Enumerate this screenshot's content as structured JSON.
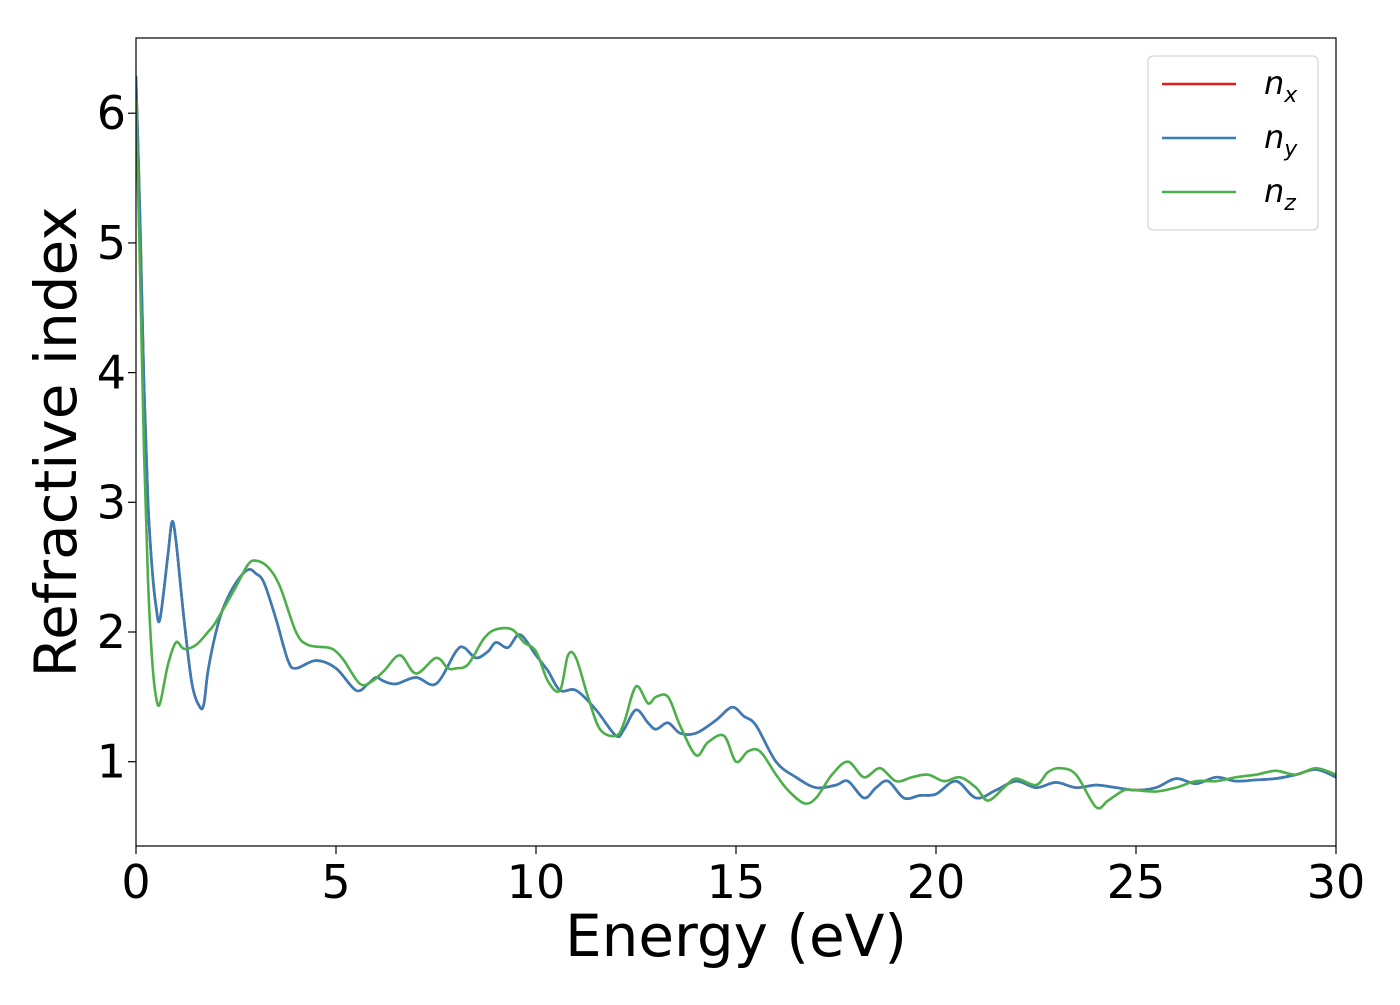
{
  "chart_data": {
    "type": "line",
    "xlabel": "Energy (eV)",
    "ylabel": "Refractive index",
    "xlim": [
      0,
      30
    ],
    "ylim": [
      0.35,
      6.58
    ],
    "xticks": [
      0,
      5,
      10,
      15,
      20,
      25,
      30
    ],
    "yticks": [
      1,
      2,
      3,
      4,
      5,
      6
    ],
    "grid": false,
    "legend_position": "top-right",
    "series": [
      {
        "name": "n",
        "subscript": "x",
        "color": "#e41a1c",
        "x": [
          0,
          0.1,
          0.2,
          0.3,
          0.4,
          0.5,
          0.6,
          0.8,
          0.9,
          1.0,
          1.2,
          1.4,
          1.6,
          1.7,
          1.8,
          2.0,
          2.2,
          2.5,
          2.8,
          3.0,
          3.2,
          3.5,
          3.8,
          4.0,
          4.5,
          5.0,
          5.5,
          5.8,
          6.0,
          6.2,
          6.5,
          7.0,
          7.5,
          8.0,
          8.2,
          8.5,
          8.8,
          9.0,
          9.3,
          9.6,
          10.0,
          10.3,
          10.6,
          11.0,
          11.5,
          12.0,
          12.2,
          12.5,
          12.8,
          13.0,
          13.3,
          13.6,
          14.0,
          14.5,
          14.9,
          15.2,
          15.5,
          16.0,
          16.5,
          17.0,
          17.5,
          17.8,
          18.2,
          18.5,
          18.8,
          19.2,
          19.6,
          20.0,
          20.5,
          21.0,
          21.5,
          22.0,
          22.5,
          23.0,
          23.5,
          24.0,
          24.5,
          25.0,
          25.5,
          26.0,
          26.5,
          27.0,
          27.5,
          28.0,
          28.5,
          29.0,
          29.5,
          30.0
        ],
        "y": [
          6.28,
          5.2,
          3.9,
          3.0,
          2.5,
          2.2,
          2.1,
          2.6,
          2.85,
          2.7,
          2.1,
          1.6,
          1.42,
          1.45,
          1.7,
          2.0,
          2.2,
          2.38,
          2.48,
          2.45,
          2.38,
          2.1,
          1.78,
          1.72,
          1.78,
          1.72,
          1.55,
          1.6,
          1.65,
          1.62,
          1.6,
          1.65,
          1.6,
          1.85,
          1.88,
          1.8,
          1.85,
          1.92,
          1.88,
          1.98,
          1.82,
          1.7,
          1.55,
          1.55,
          1.4,
          1.2,
          1.25,
          1.4,
          1.3,
          1.25,
          1.3,
          1.22,
          1.22,
          1.32,
          1.42,
          1.35,
          1.28,
          1.0,
          0.88,
          0.8,
          0.82,
          0.85,
          0.72,
          0.8,
          0.85,
          0.72,
          0.74,
          0.75,
          0.85,
          0.72,
          0.78,
          0.85,
          0.8,
          0.84,
          0.8,
          0.82,
          0.8,
          0.78,
          0.8,
          0.87,
          0.83,
          0.88,
          0.85,
          0.86,
          0.87,
          0.9,
          0.94,
          0.88
        ]
      },
      {
        "name": "n",
        "subscript": "y",
        "color": "#377eb8",
        "x": [
          0,
          0.1,
          0.2,
          0.3,
          0.4,
          0.5,
          0.6,
          0.8,
          0.9,
          1.0,
          1.2,
          1.4,
          1.6,
          1.7,
          1.8,
          2.0,
          2.2,
          2.5,
          2.8,
          3.0,
          3.2,
          3.5,
          3.8,
          4.0,
          4.5,
          5.0,
          5.5,
          5.8,
          6.0,
          6.2,
          6.5,
          7.0,
          7.5,
          8.0,
          8.2,
          8.5,
          8.8,
          9.0,
          9.3,
          9.6,
          10.0,
          10.3,
          10.6,
          11.0,
          11.5,
          12.0,
          12.2,
          12.5,
          12.8,
          13.0,
          13.3,
          13.6,
          14.0,
          14.5,
          14.9,
          15.2,
          15.5,
          16.0,
          16.5,
          17.0,
          17.5,
          17.8,
          18.2,
          18.5,
          18.8,
          19.2,
          19.6,
          20.0,
          20.5,
          21.0,
          21.5,
          22.0,
          22.5,
          23.0,
          23.5,
          24.0,
          24.5,
          25.0,
          25.5,
          26.0,
          26.5,
          27.0,
          27.5,
          28.0,
          28.5,
          29.0,
          29.5,
          30.0
        ],
        "y": [
          6.28,
          5.2,
          3.9,
          3.0,
          2.5,
          2.2,
          2.1,
          2.6,
          2.85,
          2.7,
          2.1,
          1.6,
          1.42,
          1.45,
          1.7,
          2.0,
          2.2,
          2.38,
          2.48,
          2.45,
          2.38,
          2.1,
          1.78,
          1.72,
          1.78,
          1.72,
          1.55,
          1.6,
          1.65,
          1.62,
          1.6,
          1.65,
          1.6,
          1.85,
          1.88,
          1.8,
          1.85,
          1.92,
          1.88,
          1.98,
          1.82,
          1.7,
          1.55,
          1.55,
          1.4,
          1.2,
          1.25,
          1.4,
          1.3,
          1.25,
          1.3,
          1.22,
          1.22,
          1.32,
          1.42,
          1.35,
          1.28,
          1.0,
          0.88,
          0.8,
          0.82,
          0.85,
          0.72,
          0.8,
          0.85,
          0.72,
          0.74,
          0.75,
          0.85,
          0.72,
          0.78,
          0.85,
          0.8,
          0.84,
          0.8,
          0.82,
          0.8,
          0.78,
          0.8,
          0.87,
          0.83,
          0.88,
          0.85,
          0.86,
          0.87,
          0.9,
          0.94,
          0.88
        ]
      },
      {
        "name": "n",
        "subscript": "z",
        "color": "#4daf4a",
        "x": [
          0,
          0.1,
          0.2,
          0.3,
          0.4,
          0.5,
          0.6,
          0.8,
          1.0,
          1.2,
          1.5,
          1.8,
          2.0,
          2.5,
          2.8,
          3.0,
          3.3,
          3.6,
          4.0,
          4.3,
          4.8,
          5.0,
          5.2,
          5.6,
          5.9,
          6.2,
          6.6,
          7.0,
          7.5,
          7.8,
          8.0,
          8.3,
          8.7,
          9.0,
          9.4,
          9.7,
          10.0,
          10.3,
          10.6,
          10.8,
          11.0,
          11.3,
          11.6,
          12.0,
          12.2,
          12.5,
          12.8,
          13.0,
          13.3,
          13.6,
          14.0,
          14.3,
          14.7,
          15.0,
          15.3,
          15.6,
          16.0,
          16.3,
          16.7,
          17.0,
          17.4,
          17.8,
          18.2,
          18.6,
          19.0,
          19.4,
          19.8,
          20.2,
          20.6,
          21.0,
          21.3,
          21.7,
          22.0,
          22.5,
          22.8,
          23.1,
          23.5,
          24.0,
          24.3,
          24.7,
          25.0,
          25.5,
          26.0,
          26.5,
          27.0,
          27.5,
          28.0,
          28.5,
          29.0,
          29.5,
          30.0
        ],
        "y": [
          6.1,
          4.8,
          3.4,
          2.4,
          1.8,
          1.5,
          1.45,
          1.75,
          1.92,
          1.87,
          1.9,
          2.0,
          2.08,
          2.35,
          2.52,
          2.55,
          2.5,
          2.35,
          2.0,
          1.9,
          1.88,
          1.85,
          1.78,
          1.6,
          1.62,
          1.7,
          1.82,
          1.68,
          1.8,
          1.72,
          1.72,
          1.75,
          1.95,
          2.02,
          2.02,
          1.92,
          1.85,
          1.62,
          1.55,
          1.82,
          1.8,
          1.5,
          1.25,
          1.2,
          1.3,
          1.58,
          1.45,
          1.5,
          1.5,
          1.28,
          1.05,
          1.15,
          1.2,
          1.0,
          1.08,
          1.08,
          0.9,
          0.78,
          0.68,
          0.72,
          0.9,
          1.0,
          0.88,
          0.95,
          0.85,
          0.88,
          0.9,
          0.85,
          0.88,
          0.8,
          0.7,
          0.8,
          0.87,
          0.82,
          0.92,
          0.95,
          0.9,
          0.65,
          0.7,
          0.78,
          0.78,
          0.77,
          0.8,
          0.85,
          0.85,
          0.88,
          0.9,
          0.93,
          0.9,
          0.95,
          0.9
        ]
      }
    ]
  }
}
